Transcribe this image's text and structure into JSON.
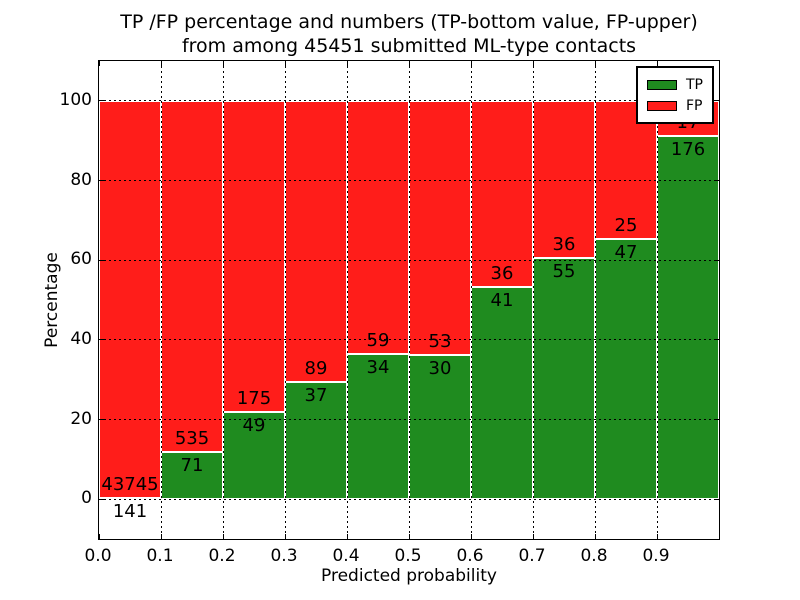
{
  "chart_data": {
    "type": "bar",
    "stacked": true,
    "percent_normalized": true,
    "title_line1": "TP /FP percentage and numbers (TP-bottom value, FP-upper)",
    "title_line2": "from among 45451 submitted ML-type contacts",
    "title": "TP /FP percentage and numbers (TP-bottom value, FP-upper) from among 45451 submitted ML-type contacts",
    "total_contacts": 45451,
    "xlabel": "Predicted probability",
    "ylabel": "Percentage",
    "categories": [
      "0.0",
      "0.1",
      "0.2",
      "0.3",
      "0.4",
      "0.5",
      "0.6",
      "0.7",
      "0.8",
      "0.9"
    ],
    "bin_width": 0.1,
    "series": [
      {
        "name": "TP",
        "color": "#1f8b1f",
        "values": [
          141,
          71,
          49,
          37,
          34,
          30,
          41,
          55,
          47,
          176
        ]
      },
      {
        "name": "FP",
        "color": "#ff1d1a",
        "values": [
          43745,
          535,
          175,
          89,
          59,
          53,
          36,
          36,
          25,
          17
        ]
      }
    ],
    "tp_percent": [
      0.32,
      11.72,
      21.88,
      29.37,
      36.56,
      36.14,
      53.25,
      60.44,
      65.28,
      91.19
    ],
    "x_ticks": [
      "0.0",
      "0.1",
      "0.2",
      "0.3",
      "0.4",
      "0.5",
      "0.6",
      "0.7",
      "0.8",
      "0.9"
    ],
    "x_tick_values": [
      0.0,
      0.1,
      0.2,
      0.3,
      0.4,
      0.5,
      0.6,
      0.7,
      0.8,
      0.9
    ],
    "y_ticks": [
      0,
      20,
      40,
      60,
      80,
      100
    ],
    "xlim": [
      0.0,
      1.0
    ],
    "ylim": [
      -10,
      110
    ],
    "grid": {
      "style": "dotted",
      "color": "#000000",
      "on": true
    },
    "legend": {
      "position": "upper-right",
      "entries": [
        {
          "label": "TP",
          "color": "#1f8b1f"
        },
        {
          "label": "FP",
          "color": "#ff1d1a"
        }
      ]
    }
  }
}
